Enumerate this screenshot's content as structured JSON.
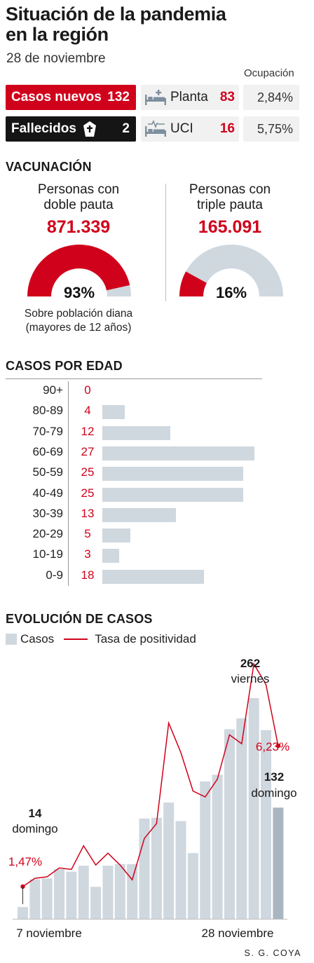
{
  "header": {
    "title_line1": "Situación de la pandemia",
    "title_line2": "en la región",
    "date": "28 de noviembre",
    "occupancy_label": "Ocupación"
  },
  "stats": {
    "new_cases_label": "Casos nuevos",
    "new_cases_value": "132",
    "deaths_label": "Fallecidos",
    "deaths_value": "2",
    "ward_label": "Planta",
    "ward_value": "83",
    "ward_occupancy": "2,84%",
    "icu_label": "UCI",
    "icu_value": "16",
    "icu_occupancy": "5,75%"
  },
  "vaccination": {
    "title": "VACUNACIÓN",
    "double": {
      "label_line1": "Personas con",
      "label_line2": "doble pauta",
      "value": "871.339",
      "percent_label": "93%",
      "fraction": 0.93
    },
    "triple": {
      "label_line1": "Personas con",
      "label_line2": "triple pauta",
      "value": "165.091",
      "percent_label": "16%",
      "fraction": 0.16
    },
    "note_line1": "Sobre población diana",
    "note_line2": "(mayores de 12 años)"
  },
  "colors": {
    "red": "#d0021b",
    "grey_bar": "#cfd7df",
    "last_bar": "#a9b6c2",
    "dark": "#151515"
  },
  "icons": {
    "ward": "hospital-bed-icon",
    "icu": "icu-monitor-icon",
    "deaths": "coffin-icon"
  },
  "chart_data": [
    {
      "type": "bar",
      "title": "CASOS POR EDAD",
      "orientation": "horizontal",
      "categories": [
        "90+",
        "80-89",
        "70-79",
        "60-69",
        "50-59",
        "40-49",
        "30-39",
        "20-29",
        "10-19",
        "0-9"
      ],
      "values": [
        0,
        4,
        12,
        27,
        25,
        25,
        13,
        5,
        3,
        18
      ],
      "value_labels": [
        "0",
        "4",
        "12",
        "27",
        "25",
        "25",
        "13",
        "5",
        "3",
        "18"
      ]
    },
    {
      "type": "bar",
      "title": "EVOLUCIÓN DE CASOS",
      "legend": [
        "Casos",
        "Tasa de positividad"
      ],
      "x_start_label": "7 noviembre",
      "x_end_label": "28 noviembre",
      "series": [
        {
          "name": "Casos",
          "type": "bar",
          "values": [
            14,
            47,
            48,
            59,
            56,
            63,
            38,
            63,
            65,
            65,
            119,
            120,
            138,
            116,
            78,
            163,
            171,
            225,
            238,
            262,
            224,
            132
          ]
        },
        {
          "name": "Tasa de positividad",
          "type": "line",
          "values": [
            1.47,
            1.75,
            1.8,
            2.1,
            2.05,
            2.85,
            2.2,
            2.6,
            2.2,
            1.7,
            3.1,
            3.6,
            7.0,
            6.0,
            4.7,
            4.5,
            5.1,
            6.6,
            6.3,
            9.0,
            8.3,
            6.23
          ]
        }
      ],
      "annotations": [
        {
          "value": "14",
          "label": "domingo"
        },
        {
          "value": "262",
          "label": "viernes"
        },
        {
          "value": "132",
          "label": "domingo"
        },
        {
          "value": "1,47%"
        },
        {
          "value": "6,23%"
        }
      ]
    }
  ],
  "footer": {
    "credit": "S. G. COYA"
  }
}
